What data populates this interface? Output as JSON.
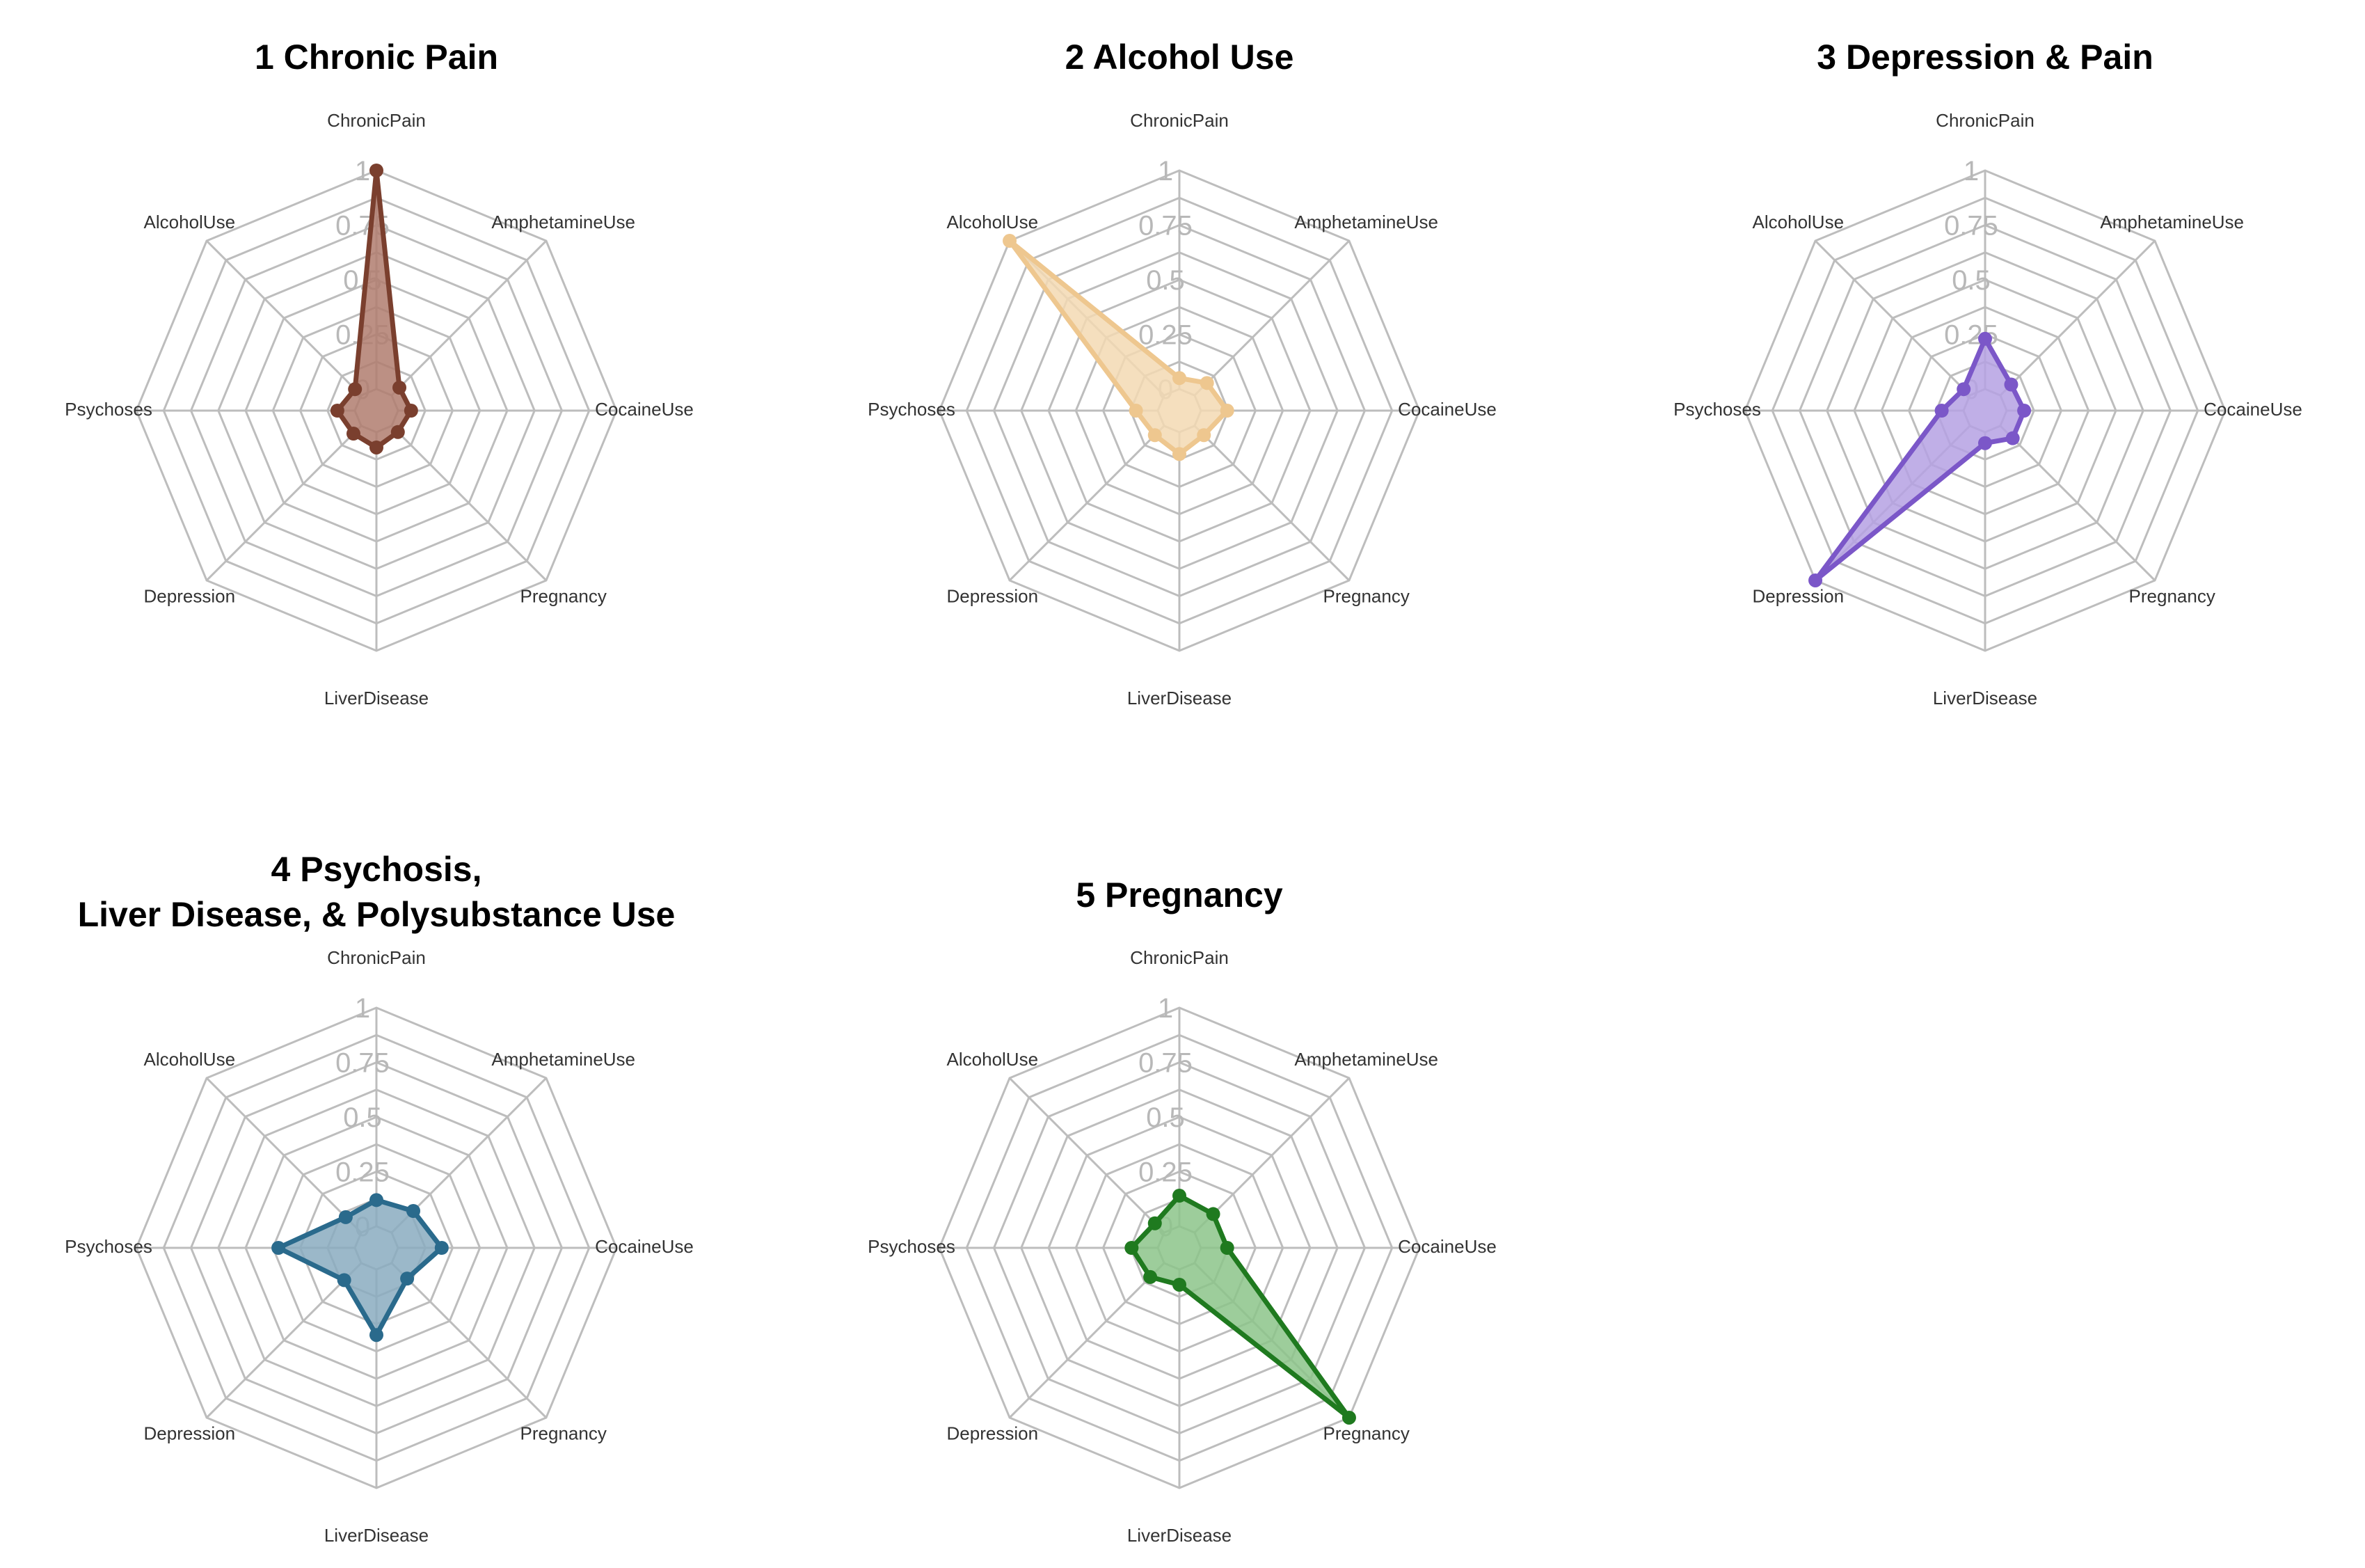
{
  "chart_data": [
    {
      "type": "radar",
      "title": [
        "1 Chronic Pain"
      ],
      "axes": [
        "ChronicPain",
        "AmphetamineUse",
        "CocaineUse",
        "Pregnancy",
        "LiverDisease",
        "Depression",
        "Psychoses",
        "AlcoholUse"
      ],
      "ticks": [
        "0",
        "0.25",
        "0.5",
        "0.75",
        "1"
      ],
      "range": [
        0,
        1
      ],
      "grid": true,
      "series": [
        {
          "values": [
            1.0,
            0.05,
            0.06,
            0.04,
            0.07,
            0.05,
            0.08,
            0.04
          ],
          "color": "#7a3f2e",
          "fill": "#b07c6e"
        }
      ]
    },
    {
      "type": "radar",
      "title": [
        "2 Alcohol Use"
      ],
      "axes": [
        "ChronicPain",
        "AmphetamineUse",
        "CocaineUse",
        "Pregnancy",
        "LiverDisease",
        "Depression",
        "Psychoses",
        "AlcoholUse"
      ],
      "ticks": [
        "0",
        "0.25",
        "0.5",
        "0.75",
        "1"
      ],
      "range": [
        0,
        1
      ],
      "grid": true,
      "series": [
        {
          "values": [
            0.05,
            0.08,
            0.12,
            0.06,
            0.1,
            0.06,
            0.1,
            1.0
          ],
          "color": "#eec78f",
          "fill": "#f3d9b3"
        }
      ]
    },
    {
      "type": "radar",
      "title": [
        "3 Depression & Pain"
      ],
      "axes": [
        "ChronicPain",
        "AmphetamineUse",
        "CocaineUse",
        "Pregnancy",
        "LiverDisease",
        "Depression",
        "Psychoses",
        "AlcoholUse"
      ],
      "ticks": [
        "0",
        "0.25",
        "0.5",
        "0.75",
        "1"
      ],
      "range": [
        0,
        1
      ],
      "grid": true,
      "series": [
        {
          "values": [
            0.23,
            0.07,
            0.08,
            0.08,
            0.05,
            1.0,
            0.1,
            0.04
          ],
          "color": "#7b57c8",
          "fill": "#b5a1e3"
        }
      ]
    },
    {
      "type": "radar",
      "title": [
        "4 Psychosis,",
        "Liver Disease, & Polysubstance Use"
      ],
      "axes": [
        "ChronicPain",
        "AmphetamineUse",
        "CocaineUse",
        "Pregnancy",
        "LiverDisease",
        "Depression",
        "Psychoses",
        "AlcoholUse"
      ],
      "ticks": [
        "0",
        "0.25",
        "0.5",
        "0.75",
        "1"
      ],
      "range": [
        0,
        1
      ],
      "grid": true,
      "series": [
        {
          "values": [
            0.12,
            0.14,
            0.2,
            0.1,
            0.3,
            0.11,
            0.35,
            0.1
          ],
          "color": "#2a6a8c",
          "fill": "#8aabc0"
        }
      ]
    },
    {
      "type": "radar",
      "title": [
        "5 Pregnancy"
      ],
      "axes": [
        "ChronicPain",
        "AmphetamineUse",
        "CocaineUse",
        "Pregnancy",
        "LiverDisease",
        "Depression",
        "Psychoses",
        "AlcoholUse"
      ],
      "ticks": [
        "0",
        "0.25",
        "0.5",
        "0.75",
        "1"
      ],
      "range": [
        0,
        1
      ],
      "grid": true,
      "series": [
        {
          "values": [
            0.14,
            0.12,
            0.12,
            1.0,
            0.07,
            0.09,
            0.12,
            0.06
          ],
          "color": "#1f7a1f",
          "fill": "#8cc48a"
        }
      ]
    }
  ]
}
